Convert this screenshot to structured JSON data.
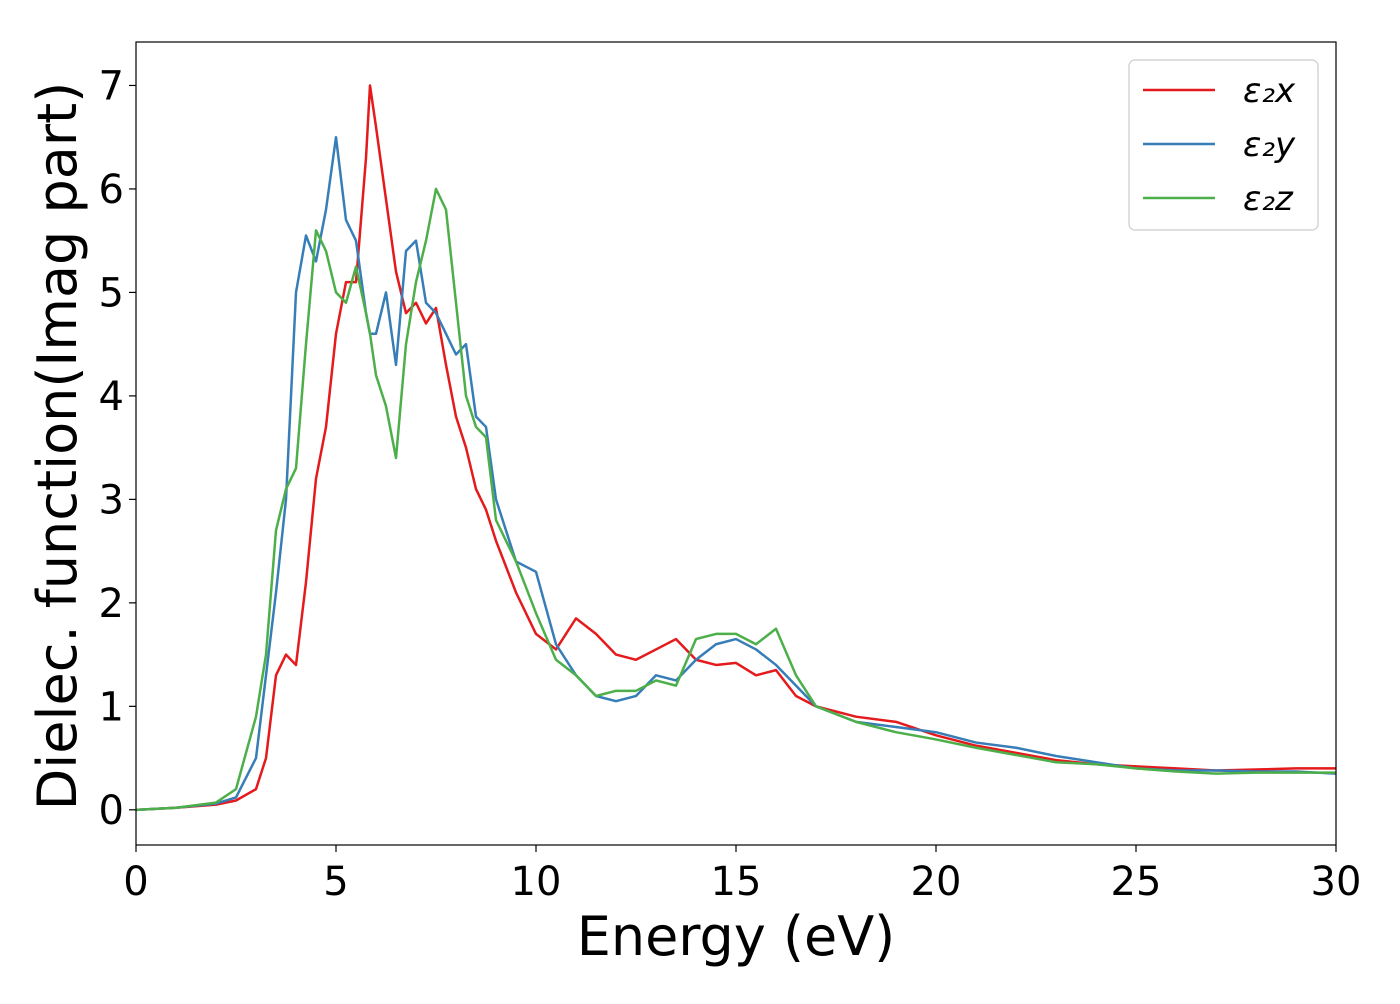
{
  "chart_data": {
    "type": "line",
    "xlabel": "Energy (eV)",
    "ylabel": "Dielec. function(Imag part)",
    "x": [
      0,
      1,
      2,
      2.5,
      3,
      3.25,
      3.5,
      3.75,
      4,
      4.25,
      4.5,
      4.75,
      5,
      5.25,
      5.5,
      5.75,
      5.85,
      6,
      6.25,
      6.5,
      6.75,
      7,
      7.25,
      7.5,
      7.75,
      8,
      8.25,
      8.5,
      8.75,
      9,
      9.5,
      10,
      10.5,
      11,
      11.5,
      12,
      12.5,
      13,
      13.5,
      14,
      14.5,
      15,
      15.5,
      16,
      16.5,
      17,
      18,
      19,
      20,
      21,
      22,
      23,
      24,
      25,
      26,
      27,
      28,
      29,
      30
    ],
    "series": [
      {
        "name": "ε₂x",
        "color": "#e41a1c",
        "values": [
          0,
          0.02,
          0.05,
          0.09,
          0.2,
          0.5,
          1.3,
          1.5,
          1.4,
          2.2,
          3.2,
          3.7,
          4.6,
          5.1,
          5.1,
          6.3,
          7.0,
          6.6,
          5.9,
          5.2,
          4.8,
          4.9,
          4.7,
          4.85,
          4.3,
          3.8,
          3.5,
          3.1,
          2.9,
          2.6,
          2.1,
          1.7,
          1.55,
          1.85,
          1.7,
          1.5,
          1.45,
          1.55,
          1.65,
          1.45,
          1.4,
          1.42,
          1.3,
          1.35,
          1.1,
          1.0,
          0.9,
          0.85,
          0.72,
          0.62,
          0.55,
          0.48,
          0.44,
          0.42,
          0.4,
          0.38,
          0.39,
          0.4,
          0.4
        ]
      },
      {
        "name": "ε₂y",
        "color": "#377eb8",
        "values": [
          0,
          0.02,
          0.06,
          0.12,
          0.5,
          1.3,
          2.1,
          3.0,
          5.0,
          5.55,
          5.3,
          5.8,
          6.5,
          5.7,
          5.5,
          4.8,
          4.6,
          4.6,
          5.0,
          4.3,
          5.4,
          5.5,
          4.9,
          4.8,
          4.6,
          4.4,
          4.5,
          3.8,
          3.7,
          3.0,
          2.4,
          2.3,
          1.6,
          1.3,
          1.1,
          1.05,
          1.1,
          1.3,
          1.25,
          1.45,
          1.6,
          1.65,
          1.55,
          1.4,
          1.2,
          1.0,
          0.85,
          0.8,
          0.75,
          0.65,
          0.6,
          0.52,
          0.46,
          0.4,
          0.38,
          0.38,
          0.37,
          0.37,
          0.35
        ]
      },
      {
        "name": "ε₂z",
        "color": "#4daf4a",
        "values": [
          0,
          0.02,
          0.07,
          0.2,
          0.9,
          1.5,
          2.7,
          3.1,
          3.3,
          4.5,
          5.6,
          5.4,
          5.0,
          4.9,
          5.25,
          4.8,
          4.6,
          4.2,
          3.9,
          3.4,
          4.5,
          5.1,
          5.5,
          6.0,
          5.8,
          4.9,
          4.0,
          3.7,
          3.6,
          2.8,
          2.4,
          1.9,
          1.45,
          1.3,
          1.1,
          1.15,
          1.15,
          1.25,
          1.2,
          1.65,
          1.7,
          1.7,
          1.6,
          1.75,
          1.3,
          1.0,
          0.85,
          0.75,
          0.68,
          0.6,
          0.53,
          0.46,
          0.44,
          0.4,
          0.37,
          0.35,
          0.36,
          0.36,
          0.36
        ]
      }
    ],
    "xlim": [
      0,
      30
    ],
    "xticks": [
      0,
      5,
      10,
      15,
      20,
      25,
      30
    ],
    "ylim": [
      -0.34,
      7.42
    ],
    "yticks": [
      0,
      1,
      2,
      3,
      4,
      5,
      6,
      7
    ],
    "grid": false,
    "legend": "upper right"
  }
}
